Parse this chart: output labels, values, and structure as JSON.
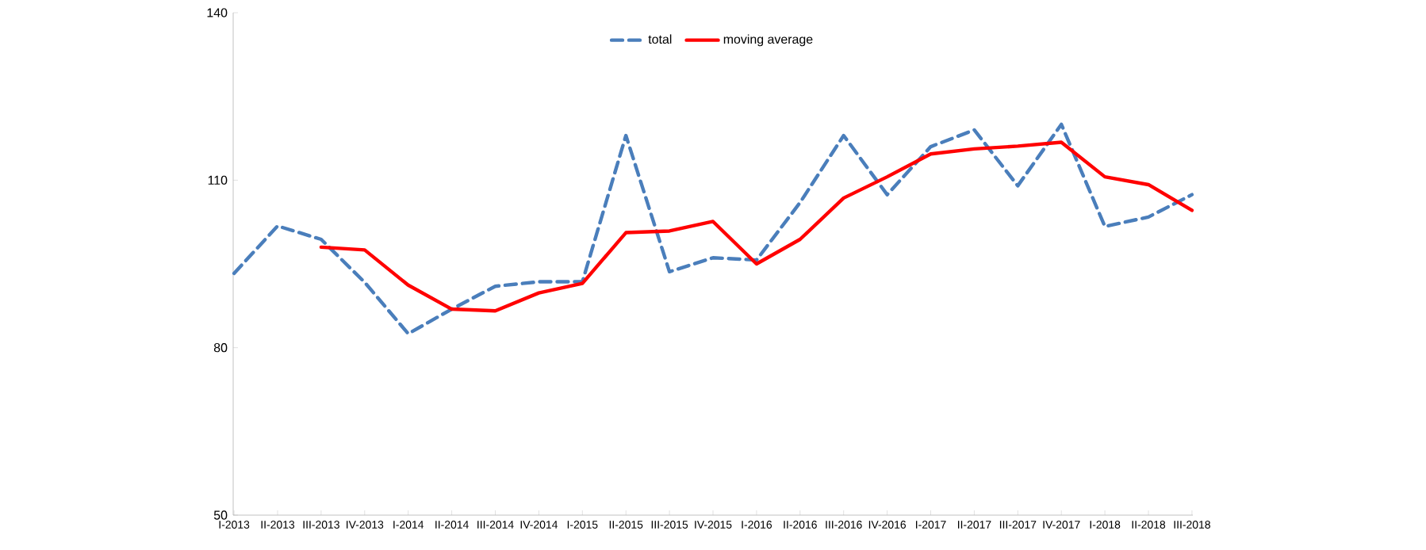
{
  "chart_data": {
    "type": "line",
    "categories": [
      "I-2013",
      "II-2013",
      "III-2013",
      "IV-2013",
      "I-2014",
      "II-2014",
      "III-2014",
      "IV-2014",
      "I-2015",
      "II-2015",
      "III-2015",
      "IV-2015",
      "I-2016",
      "II-2016",
      "III-2016",
      "IV-2016",
      "I-2017",
      "II-2017",
      "III-2017",
      "IV-2017",
      "I-2018",
      "II-2018",
      "III-2018"
    ],
    "series": [
      {
        "name": "total",
        "color": "#4a7ebb",
        "line_style": "dashed",
        "values": [
          93.3,
          101.8,
          99.4,
          91.7,
          82.5,
          86.9,
          91,
          91.8,
          91.8,
          118,
          93.6,
          96.1,
          95.7,
          106,
          118,
          107.4,
          116,
          119,
          109,
          120,
          101.7,
          103.4,
          107.4
        ]
      },
      {
        "name": "moving average",
        "color": "#ff0000",
        "line_style": "solid",
        "values": [
          null,
          null,
          98,
          97.5,
          91.2,
          86.9,
          86.6,
          89.8,
          91.5,
          100.6,
          100.9,
          102.6,
          95,
          99.4,
          106.8,
          110.6,
          114.7,
          115.6,
          116.1,
          116.8,
          110.6,
          109.2,
          104.6
        ]
      }
    ],
    "ylim": [
      50,
      140
    ],
    "yticks": [
      50,
      80,
      110,
      140
    ],
    "grid": false,
    "legend": "top",
    "marker": "none"
  }
}
